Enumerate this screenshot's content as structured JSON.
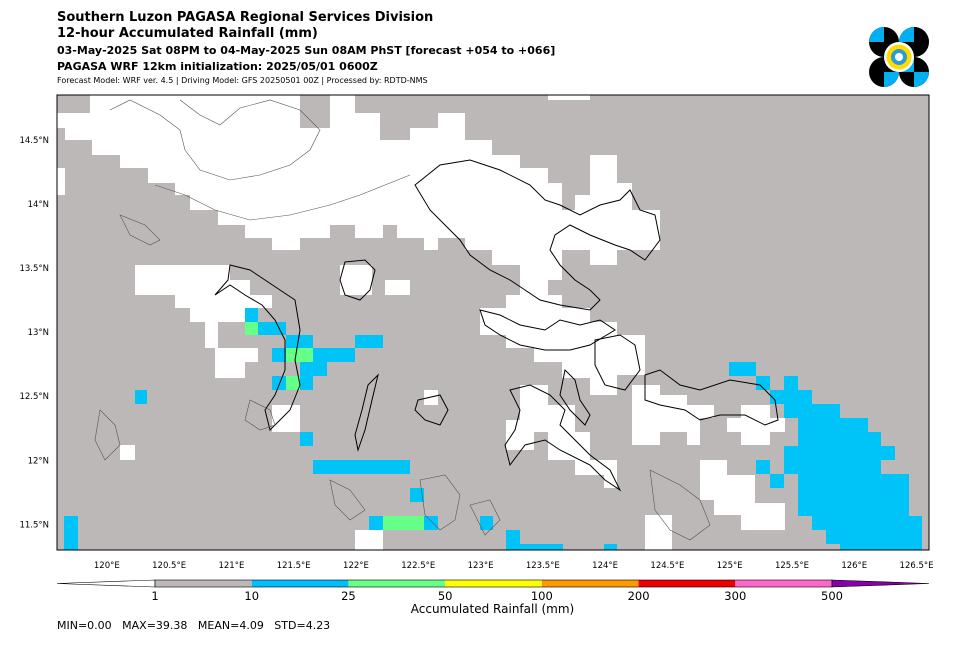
{
  "header": {
    "title": "Southern Luzon PAGASA Regional Services Division",
    "subtitle": "12-hour Accumulated Rainfall (mm)",
    "period": "03-May-2025 Sat 08PM to 04-May-2025 Sun 08AM PhST [forecast +054 to +066]",
    "init": "PAGASA WRF 12km initialization: 2025/05/01 0600Z",
    "models": "Forecast Model: WRF ver. 4.5 | Driving Model: GFS 20250501 00Z | Processed by: RDTD-NMS"
  },
  "map": {
    "lon_ticks": [
      "120°E",
      "120.5°E",
      "121°E",
      "121.5°E",
      "122°E",
      "122.5°E",
      "123°E",
      "123.5°E",
      "124°E",
      "124.5°E",
      "125°E",
      "125.5°E",
      "126°E",
      "126.5°E"
    ],
    "lat_ticks": [
      "14.5°N",
      "14°N",
      "13.5°N",
      "13°N",
      "12.5°N",
      "12°N",
      "11.5°N"
    ],
    "lon_values": [
      120.0,
      120.5,
      121.0,
      121.5,
      122.0,
      122.5,
      123.0,
      123.5,
      124.0,
      124.5,
      125.0,
      125.5,
      126.0,
      126.5
    ],
    "lat_values": [
      14.5,
      14.0,
      13.5,
      13.0,
      12.5,
      12.0,
      11.5
    ],
    "extent": {
      "lon_min": 119.6,
      "lon_max": 126.6,
      "lat_min": 11.3,
      "lat_max": 14.85
    }
  },
  "colorbar": {
    "title": "Accumulated Rainfall (mm)",
    "ticks": [
      "1",
      "10",
      "25",
      "50",
      "100",
      "200",
      "300",
      "500"
    ],
    "colors": [
      "#bcb8b8",
      "#00bfff",
      "#66ff88",
      "#ffff00",
      "#ff9900",
      "#ee0000",
      "#ff66cc",
      "#8800aa"
    ]
  },
  "stats": "MIN=0.00   MAX=39.38   MEAN=4.09   STD=4.23",
  "colors": {
    "dry": "#bcb8b8",
    "light": "#00c4f7",
    "moderate": "#66ff88",
    "land_outline": "#000000"
  }
}
